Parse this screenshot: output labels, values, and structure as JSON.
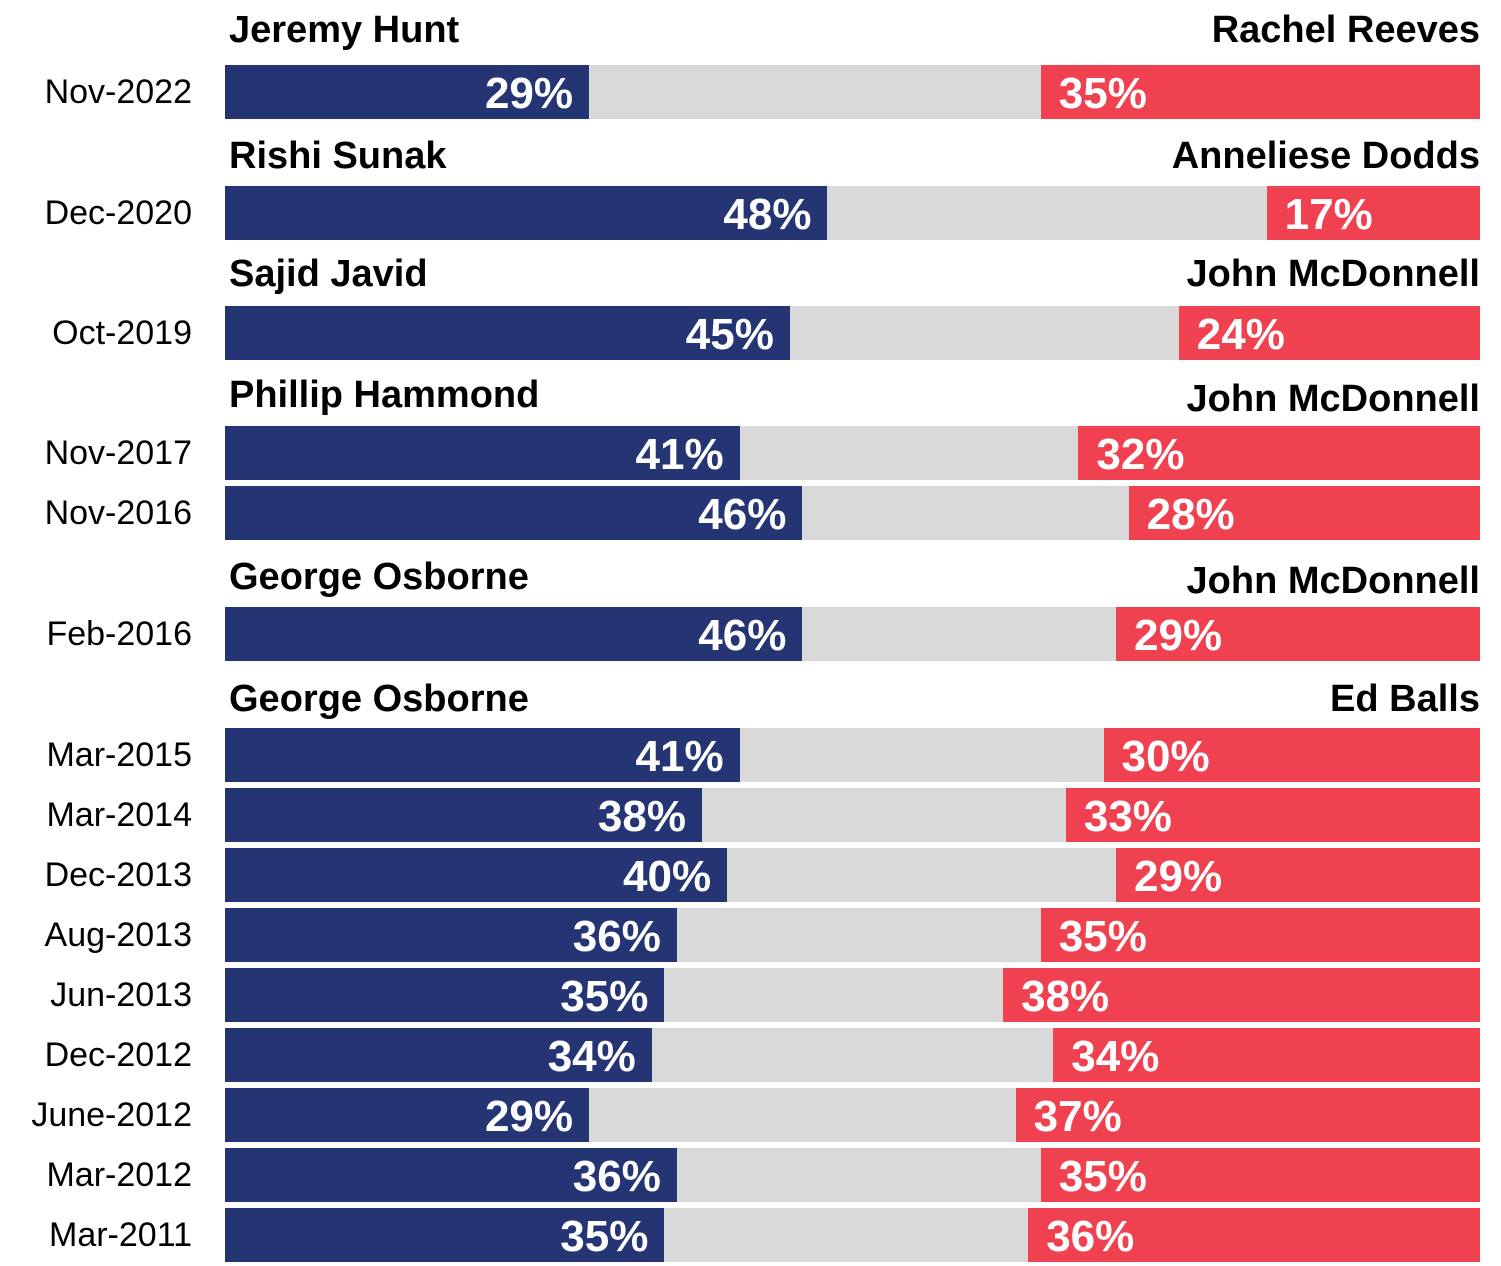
{
  "chart_data": {
    "type": "bar",
    "orientation": "horizontal-diverging-stacked",
    "scale_max_percent": 100,
    "colors": {
      "conservative": "#253574",
      "labour": "#f04150",
      "neutral": "#d9d9d9"
    },
    "groups": [
      {
        "left_person": "Jeremy Hunt",
        "right_person": "Rachel Reeves",
        "rows": [
          {
            "date": "Nov-2022",
            "left": 29,
            "right": 35,
            "left_label": "29%",
            "right_label": "35%"
          }
        ]
      },
      {
        "left_person": "Rishi Sunak",
        "right_person": "Anneliese Dodds",
        "rows": [
          {
            "date": "Dec-2020",
            "left": 48,
            "right": 17,
            "left_label": "48%",
            "right_label": "17%"
          }
        ]
      },
      {
        "left_person": "Sajid Javid",
        "right_person": "John McDonnell",
        "rows": [
          {
            "date": "Oct-2019",
            "left": 45,
            "right": 24,
            "left_label": "45%",
            "right_label": "24%"
          }
        ]
      },
      {
        "left_person": "Phillip Hammond",
        "right_person": "John McDonnell",
        "rows": [
          {
            "date": "Nov-2017",
            "left": 41,
            "right": 32,
            "left_label": "41%",
            "right_label": "32%"
          },
          {
            "date": "Nov-2016",
            "left": 46,
            "right": 28,
            "left_label": "46%",
            "right_label": "28%"
          }
        ]
      },
      {
        "left_person": "George Osborne",
        "right_person": "John McDonnell",
        "rows": [
          {
            "date": "Feb-2016",
            "left": 46,
            "right": 29,
            "left_label": "46%",
            "right_label": "29%"
          }
        ]
      },
      {
        "left_person": "George Osborne",
        "right_person": "Ed Balls",
        "rows": [
          {
            "date": "Mar-2015",
            "left": 41,
            "right": 30,
            "left_label": "41%",
            "right_label": "30%"
          },
          {
            "date": "Mar-2014",
            "left": 38,
            "right": 33,
            "left_label": "38%",
            "right_label": "33%"
          },
          {
            "date": "Dec-2013",
            "left": 40,
            "right": 29,
            "left_label": "40%",
            "right_label": "29%"
          },
          {
            "date": "Aug-2013",
            "left": 36,
            "right": 35,
            "left_label": "36%",
            "right_label": "35%"
          },
          {
            "date": "Jun-2013",
            "left": 35,
            "right": 38,
            "left_label": "35%",
            "right_label": "38%"
          },
          {
            "date": "Dec-2012",
            "left": 34,
            "right": 34,
            "left_label": "34%",
            "right_label": "34%"
          },
          {
            "date": "June-2012",
            "left": 29,
            "right": 37,
            "left_label": "29%",
            "right_label": "37%"
          },
          {
            "date": "Mar-2012",
            "left": 36,
            "right": 35,
            "left_label": "36%",
            "right_label": "35%"
          },
          {
            "date": "Mar-2011",
            "left": 35,
            "right": 36,
            "left_label": "35%",
            "right_label": "36%"
          }
        ]
      }
    ]
  }
}
